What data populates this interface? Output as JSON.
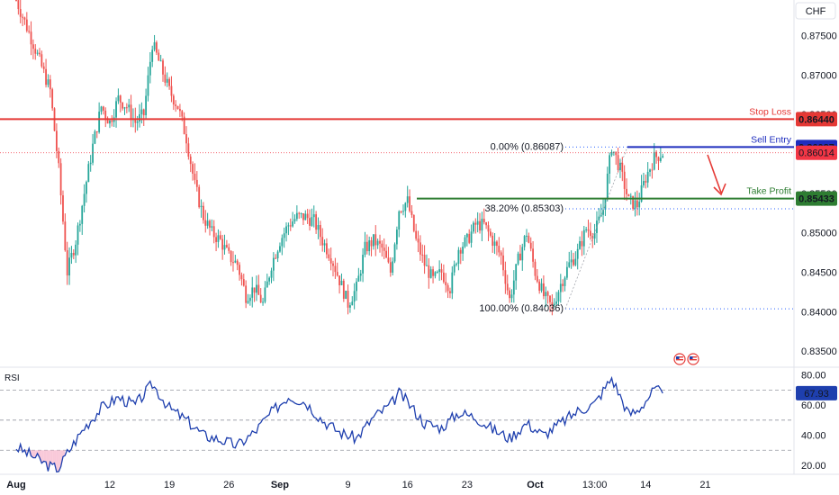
{
  "chart_data": {
    "type": "candlestick",
    "currency_label": "CHF",
    "price_axis": {
      "range": [
        0.8333,
        0.8795
      ],
      "ticks": [
        "0.87500",
        "0.87000",
        "0.86500",
        "0.86000",
        "0.85500",
        "0.85000",
        "0.84500",
        "0.84000",
        "0.83500"
      ]
    },
    "time_axis": {
      "range_days": [
        0,
        150
      ],
      "ticks": [
        {
          "label": "Aug",
          "day": 0
        },
        {
          "label": "12",
          "day": 11
        },
        {
          "label": "19",
          "day": 18
        },
        {
          "label": "26",
          "day": 25
        },
        {
          "label": "Sep",
          "day": 31
        },
        {
          "label": "9",
          "day": 39
        },
        {
          "label": "16",
          "day": 46
        },
        {
          "label": "23",
          "day": 53
        },
        {
          "label": "Oct",
          "day": 61
        },
        {
          "label": "13:00",
          "day": 68
        },
        {
          "label": "14",
          "day": 74
        },
        {
          "label": "21",
          "day": 81
        }
      ]
    },
    "price_path": [
      [
        0,
        0.8795
      ],
      [
        2,
        0.874
      ],
      [
        4,
        0.868
      ],
      [
        5,
        0.858
      ],
      [
        6,
        0.845
      ],
      [
        7,
        0.849
      ],
      [
        8,
        0.855
      ],
      [
        9,
        0.861
      ],
      [
        10,
        0.866
      ],
      [
        11,
        0.864
      ],
      [
        12,
        0.867
      ],
      [
        13,
        0.866
      ],
      [
        14,
        0.864
      ],
      [
        15,
        0.865
      ],
      [
        16,
        0.874
      ],
      [
        17,
        0.871
      ],
      [
        18,
        0.868
      ],
      [
        19,
        0.866
      ],
      [
        20,
        0.862
      ],
      [
        21,
        0.856
      ],
      [
        22,
        0.852
      ],
      [
        23,
        0.85
      ],
      [
        24,
        0.849
      ],
      [
        25,
        0.847
      ],
      [
        26,
        0.846
      ],
      [
        27,
        0.842
      ],
      [
        28,
        0.843
      ],
      [
        29,
        0.841
      ],
      [
        30,
        0.846
      ],
      [
        31,
        0.849
      ],
      [
        32,
        0.851
      ],
      [
        33,
        0.852
      ],
      [
        34,
        0.852
      ],
      [
        35,
        0.8515
      ],
      [
        36,
        0.849
      ],
      [
        37,
        0.847
      ],
      [
        38,
        0.844
      ],
      [
        39,
        0.841
      ],
      [
        40,
        0.843
      ],
      [
        41,
        0.848
      ],
      [
        42,
        0.849
      ],
      [
        43,
        0.848
      ],
      [
        44,
        0.845
      ],
      [
        45,
        0.853
      ],
      [
        46,
        0.854
      ],
      [
        47,
        0.849
      ],
      [
        48,
        0.846
      ],
      [
        49,
        0.844
      ],
      [
        50,
        0.845
      ],
      [
        51,
        0.843
      ],
      [
        52,
        0.848
      ],
      [
        53,
        0.849
      ],
      [
        54,
        0.851
      ],
      [
        55,
        0.851
      ],
      [
        56,
        0.849
      ],
      [
        57,
        0.847
      ],
      [
        58,
        0.8415
      ],
      [
        59,
        0.8465
      ],
      [
        60,
        0.85
      ],
      [
        61,
        0.845
      ],
      [
        62,
        0.842
      ],
      [
        63,
        0.8405
      ],
      [
        64,
        0.8435
      ],
      [
        65,
        0.846
      ],
      [
        66,
        0.8475
      ],
      [
        67,
        0.8505
      ],
      [
        68,
        0.85
      ],
      [
        69,
        0.853
      ],
      [
        70,
        0.861
      ],
      [
        71,
        0.858
      ],
      [
        72,
        0.854
      ],
      [
        73,
        0.8535
      ],
      [
        74,
        0.857
      ],
      [
        75,
        0.8595
      ],
      [
        76,
        0.8601
      ]
    ],
    "levels": [
      {
        "name": "Stop Loss",
        "value": 0.8644,
        "label": "0.86440",
        "color": "#e53935"
      },
      {
        "name": "Sell Entry",
        "value": 0.86087,
        "label": "0.86087",
        "color": "#1e2dbe"
      },
      {
        "name": "Take Profit",
        "value": 0.85433,
        "label": "0.85433",
        "color": "#2e7d32"
      }
    ],
    "current_price": {
      "value": 0.86014,
      "label": "0.86014",
      "color": "#f23645"
    },
    "fibonacci": [
      {
        "label": "0.00% (0.86087)",
        "value": 0.86087
      },
      {
        "label": "38.20% (0.85303)",
        "value": 0.85303
      },
      {
        "label": "100.00% (0.84036)",
        "value": 0.84036
      }
    ],
    "rsi": {
      "title": "RSI",
      "current": 67.93,
      "current_label": "67.93",
      "range": [
        14,
        84
      ],
      "ticks": [
        "80.00",
        "60.00",
        "40.00",
        "20.00"
      ],
      "bands": [
        70,
        50,
        30
      ],
      "path": [
        [
          0,
          32
        ],
        [
          2,
          26
        ],
        [
          4,
          19
        ],
        [
          5,
          18
        ],
        [
          6,
          28
        ],
        [
          8,
          45
        ],
        [
          10,
          58
        ],
        [
          12,
          65
        ],
        [
          14,
          60
        ],
        [
          16,
          74
        ],
        [
          18,
          58
        ],
        [
          20,
          50
        ],
        [
          22,
          40
        ],
        [
          24,
          37
        ],
        [
          26,
          33
        ],
        [
          28,
          42
        ],
        [
          30,
          55
        ],
        [
          32,
          66
        ],
        [
          34,
          62
        ],
        [
          36,
          50
        ],
        [
          38,
          42
        ],
        [
          40,
          38
        ],
        [
          42,
          52
        ],
        [
          44,
          60
        ],
        [
          45,
          68
        ],
        [
          46,
          62
        ],
        [
          48,
          48
        ],
        [
          50,
          45
        ],
        [
          52,
          55
        ],
        [
          54,
          52
        ],
        [
          56,
          44
        ],
        [
          58,
          38
        ],
        [
          60,
          48
        ],
        [
          62,
          40
        ],
        [
          64,
          48
        ],
        [
          66,
          56
        ],
        [
          68,
          61
        ],
        [
          70,
          78
        ],
        [
          71,
          66
        ],
        [
          72,
          54
        ],
        [
          73,
          56
        ],
        [
          74,
          63
        ],
        [
          75,
          70
        ],
        [
          76,
          68
        ]
      ]
    }
  },
  "colors": {
    "up": "#26a69a",
    "down": "#ef5350",
    "rsi_line": "#1e3fae",
    "band": "#9598a1"
  }
}
